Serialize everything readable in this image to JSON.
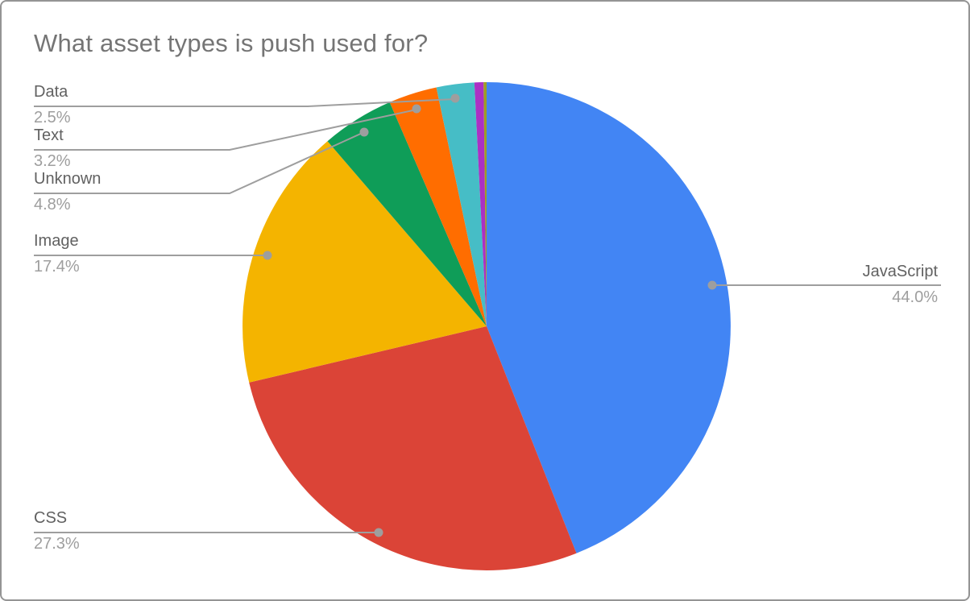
{
  "title": "What asset types is push used for?",
  "palette": {
    "blue": "#4285F4",
    "red": "#DB4437",
    "yellow": "#F4B400",
    "green": "#0F9D58",
    "orange": "#FF6D00",
    "teal": "#46BDC6",
    "purple": "#AB30C4",
    "olive": "#9E9D24",
    "title_text": "#757575",
    "label_text": "#616161",
    "percent_text": "#9e9e9e",
    "leader_line": "#9e9e9e"
  },
  "chart_data": {
    "type": "pie",
    "title": "What asset types is push used for?",
    "unit": "%",
    "start_angle_deg": 0,
    "direction": "clockwise",
    "legend_position": "callout labels with leader lines",
    "slices": [
      {
        "label": "JavaScript",
        "value": 44.0,
        "pct_label": "44.0%",
        "color": "#4285F4"
      },
      {
        "label": "CSS",
        "value": 27.3,
        "pct_label": "27.3%",
        "color": "#DB4437"
      },
      {
        "label": "Image",
        "value": 17.4,
        "pct_label": "17.4%",
        "color": "#F4B400"
      },
      {
        "label": "Unknown",
        "value": 4.8,
        "pct_label": "4.8%",
        "color": "#0F9D58"
      },
      {
        "label": "Text",
        "value": 3.2,
        "pct_label": "3.2%",
        "color": "#FF6D00"
      },
      {
        "label": "Data",
        "value": 2.5,
        "pct_label": "2.5%",
        "color": "#46BDC6"
      },
      {
        "label": "",
        "value": 0.6,
        "pct_label": "",
        "color": "#AB30C4"
      },
      {
        "label": "",
        "value": 0.2,
        "pct_label": "",
        "color": "#9E9D24"
      }
    ]
  }
}
